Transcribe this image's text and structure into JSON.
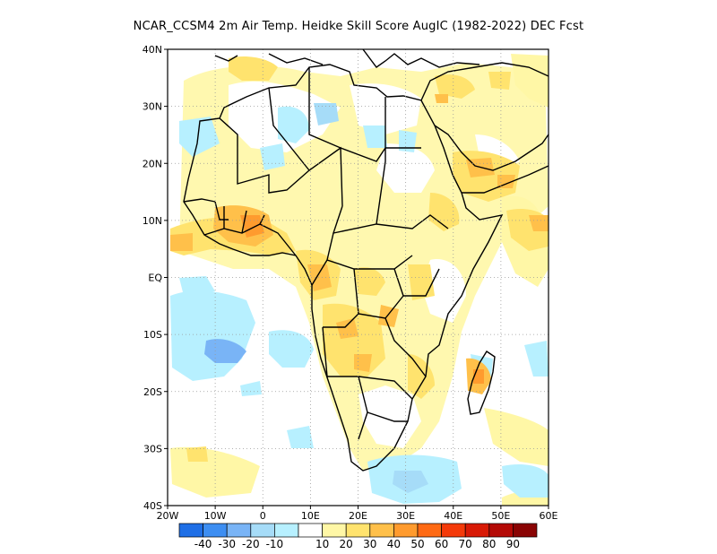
{
  "title": "NCAR_CCSM4  2m Air Temp. Heidke Skill Score AugIC (1982-2022) DEC Fcst",
  "map": {
    "lat_labels": [
      "40N",
      "30N",
      "20N",
      "10N",
      "EQ",
      "10S",
      "20S",
      "30S",
      "40S"
    ],
    "lon_labels": [
      "20W",
      "10W",
      "0",
      "10E",
      "20E",
      "30E",
      "40E",
      "50E",
      "60E"
    ],
    "lat_range": [
      -40,
      40
    ],
    "lon_range": [
      -20,
      60
    ],
    "grid": "dotted"
  },
  "colorbar": {
    "labels": [
      "-40",
      "-30",
      "-20",
      "-10",
      "10",
      "20",
      "30",
      "40",
      "50",
      "60",
      "70",
      "80",
      "90"
    ],
    "colors": [
      "#1f6fe6",
      "#3d8ef2",
      "#79b4f6",
      "#a6dcf8",
      "#b7f0ff",
      "#ffffff",
      "#fff7a6",
      "#ffe36e",
      "#ffc04a",
      "#ff9b2e",
      "#ff6a14",
      "#f43a0a",
      "#d81a06",
      "#b40a06",
      "#8a0404"
    ]
  }
}
